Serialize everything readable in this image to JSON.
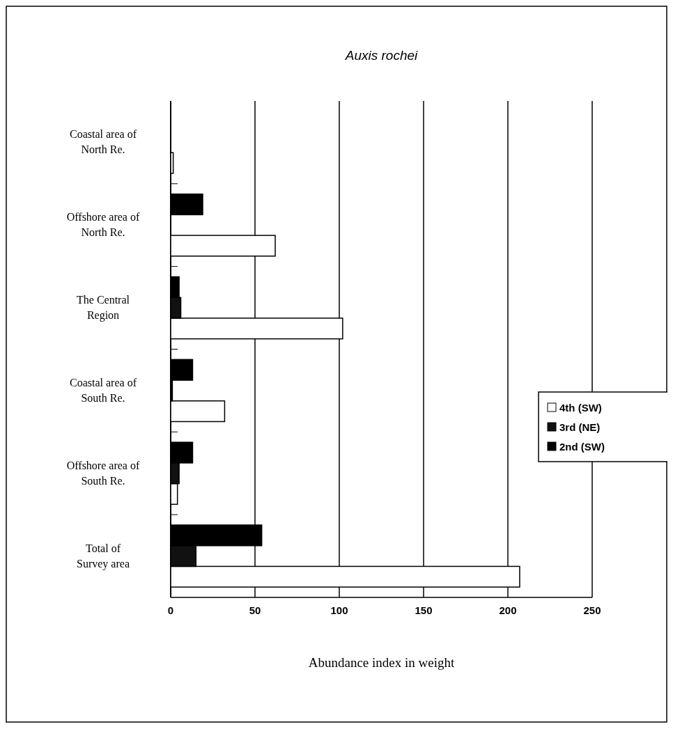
{
  "chart_data": {
    "type": "bar",
    "orientation": "horizontal",
    "title": "Auxis rochei",
    "xlabel": "Abundance index in weight",
    "categories": [
      "Coastal area of North Re.",
      "Offshore area of North Re.",
      "The Central Region",
      "Coastal area of South Re.",
      "Offshore area of South Re.",
      "Total of Survey area"
    ],
    "series": [
      {
        "name": "4th (SW)",
        "color": "#ffffff",
        "values": [
          1.5,
          62,
          102,
          32,
          4,
          207
        ]
      },
      {
        "name": "3rd (NE)",
        "color": "#111111",
        "values": [
          0,
          0,
          6,
          1,
          5,
          15
        ]
      },
      {
        "name": "2nd (SW)",
        "color": "#000000",
        "values": [
          0,
          19,
          5,
          13,
          13,
          54
        ]
      }
    ],
    "xlim": [
      0,
      250
    ],
    "xticks": [
      0,
      50,
      100,
      150,
      200,
      250
    ],
    "grid": "x",
    "legend": "right"
  }
}
